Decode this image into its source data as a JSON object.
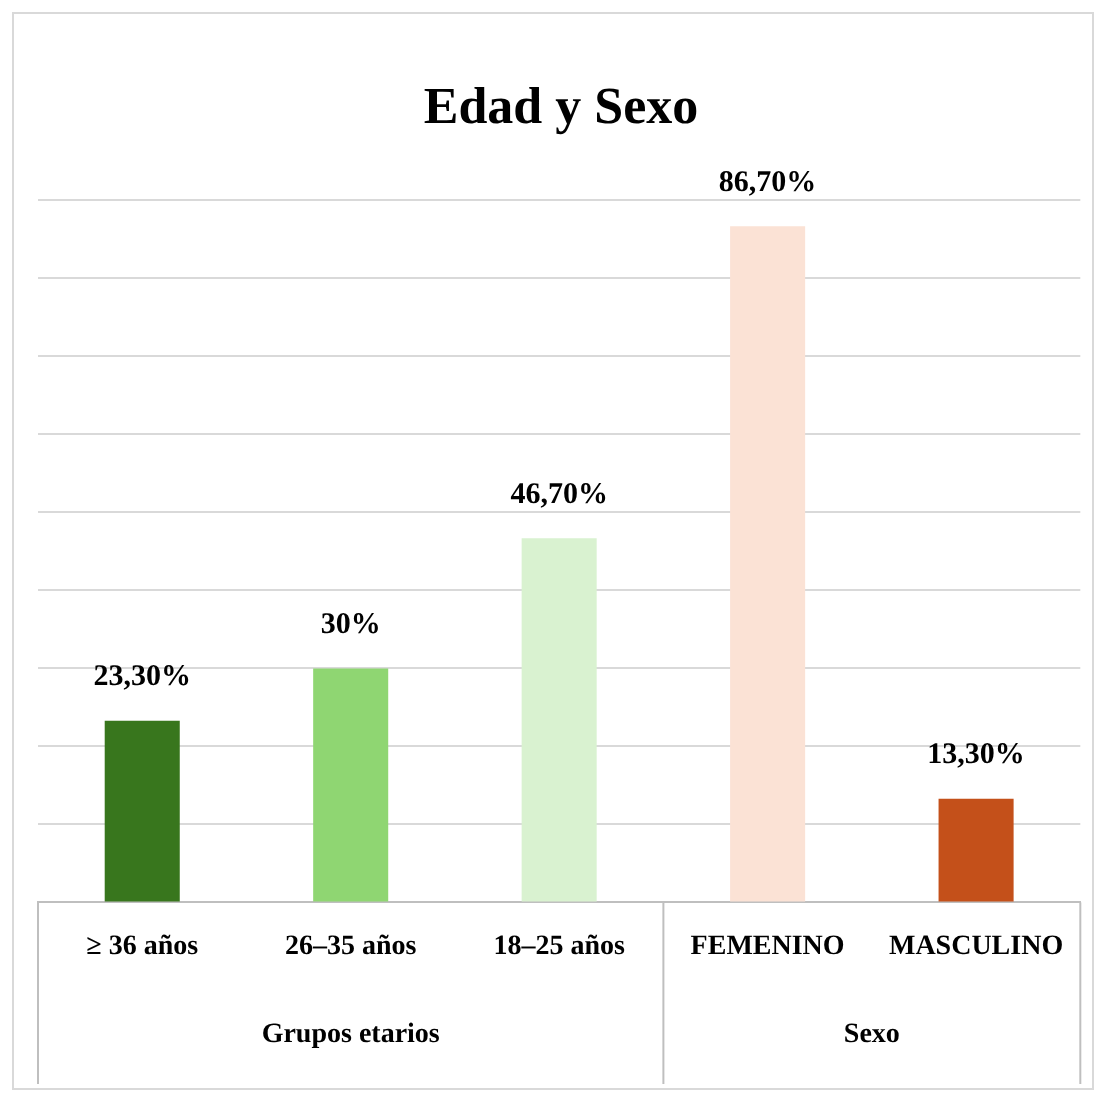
{
  "chart_data": {
    "type": "bar",
    "title": "Edad y Sexo",
    "categories": [
      "≥ 36 años",
      "26–35 años",
      "18–25 años",
      "FEMENINO",
      "MASCULINO"
    ],
    "values": [
      23.3,
      30,
      46.7,
      86.7,
      13.3
    ],
    "value_labels": [
      "23,30%",
      "30%",
      "46,70%",
      "86,70%",
      "13,30%"
    ],
    "colors": [
      "#38761d",
      "#8fd672",
      "#d9f2d0",
      "#fbe2d5",
      "#c4501a"
    ],
    "tick_labels": "x",
    "grid": "y",
    "annotations": [
      "Grupos etarios",
      "Sexo"
    ]
  }
}
